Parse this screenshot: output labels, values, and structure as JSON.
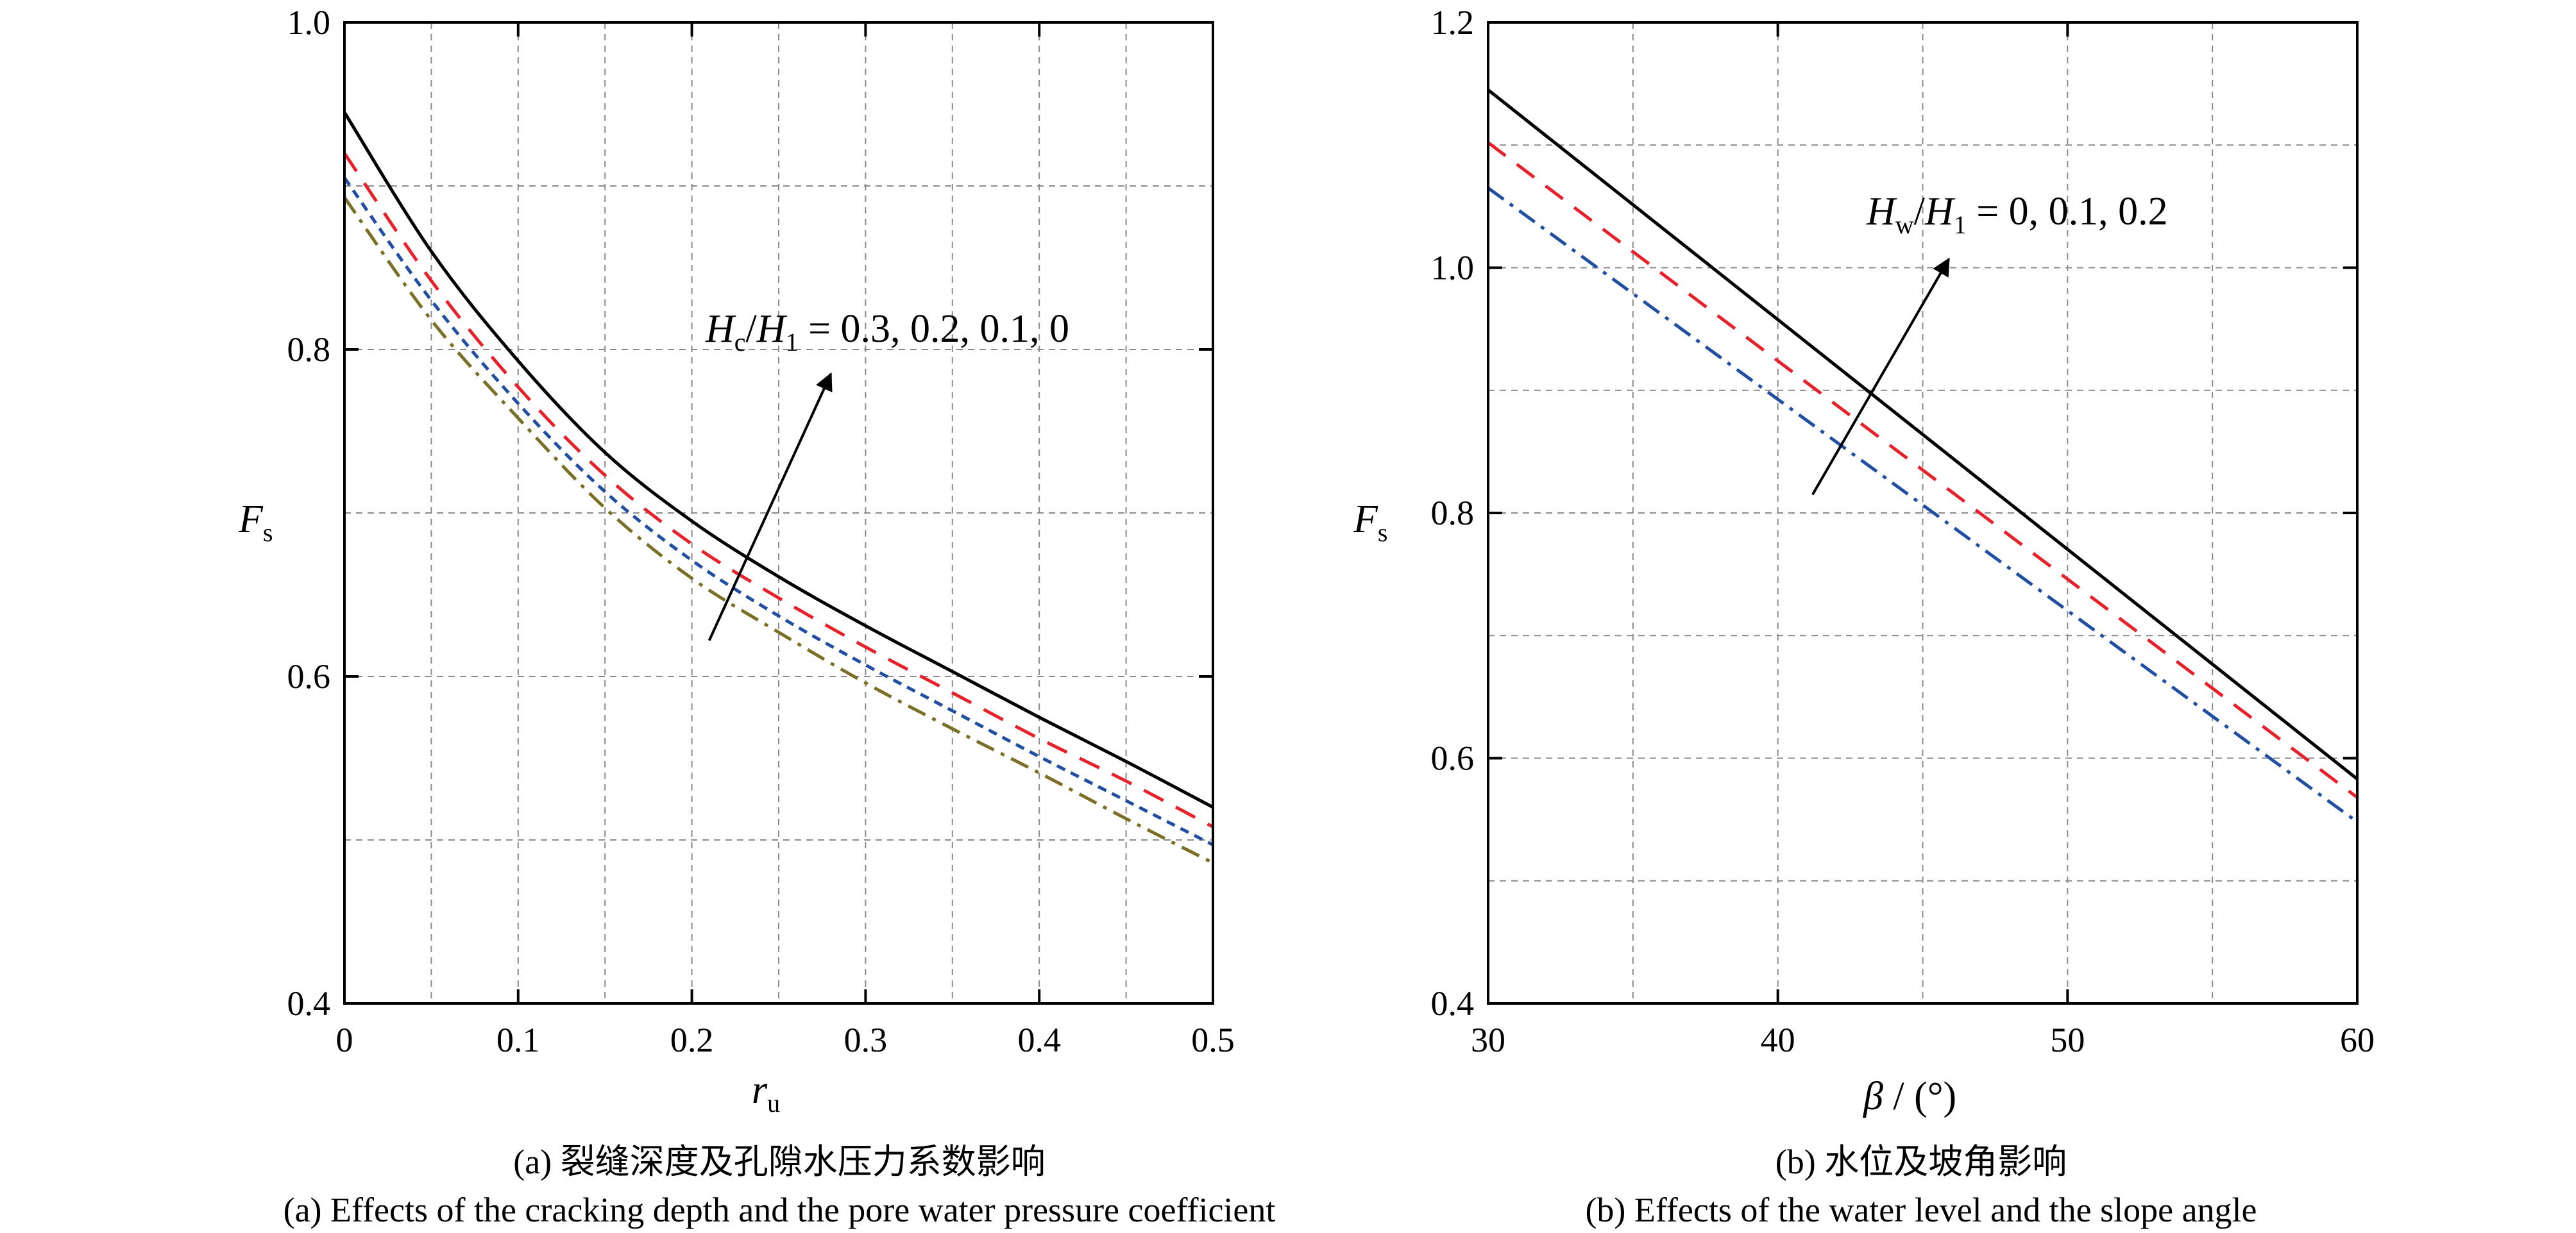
{
  "chart_data": [
    {
      "panel": "a",
      "type": "line",
      "xlabel": {
        "main": "r",
        "sub": "u"
      },
      "ylabel": {
        "main": "F",
        "sub": "s"
      },
      "xlim": [
        0,
        0.5
      ],
      "ylim": [
        0.4,
        1.0
      ],
      "xticks": [
        0,
        0.1,
        0.2,
        0.3,
        0.4,
        0.5
      ],
      "xtick_labels": [
        "0",
        "0.1",
        "0.2",
        "0.3",
        "0.4",
        "0.5"
      ],
      "yticks": [
        0.4,
        0.6,
        0.8,
        1.0
      ],
      "ytick_labels": [
        "0.4",
        "0.6",
        "0.8",
        "1.0"
      ],
      "grid": true,
      "x": [
        0,
        0.05,
        0.1,
        0.15,
        0.2,
        0.25,
        0.3,
        0.35,
        0.4,
        0.45,
        0.5
      ],
      "series": [
        {
          "values": [
            0.945,
            0.86,
            0.793,
            0.737,
            0.695,
            0.661,
            0.631,
            0.603,
            0.575,
            0.548,
            0.52
          ],
          "color": "#000000",
          "dash": "solid"
        },
        {
          "values": [
            0.92,
            0.842,
            0.777,
            0.723,
            0.681,
            0.648,
            0.618,
            0.59,
            0.562,
            0.536,
            0.508
          ],
          "color": "#e8202a",
          "dash": "long-dash"
        },
        {
          "values": [
            0.905,
            0.83,
            0.767,
            0.713,
            0.671,
            0.637,
            0.607,
            0.579,
            0.551,
            0.524,
            0.497
          ],
          "color": "#1f4ea3",
          "dash": "short-dash"
        },
        {
          "values": [
            0.893,
            0.818,
            0.758,
            0.703,
            0.66,
            0.627,
            0.596,
            0.568,
            0.541,
            0.513,
            0.486
          ],
          "color": "#7a7025",
          "dash": "dash-dot"
        }
      ],
      "annotation": {
        "H": "H",
        "sub1": "c",
        "slash": "/",
        "H2": "H",
        "sub2": "1",
        "rest": " = 0.3, 0.2, 0.1, 0"
      },
      "arrow": {
        "from": [
          0.21,
          0.622
        ],
        "to": [
          0.28,
          0.785
        ]
      },
      "caption_cn": "(a) 裂缝深度及孔隙水压力系数影响",
      "caption_en": "(a) Effects of the cracking depth and the pore water pressure coefficient"
    },
    {
      "panel": "b",
      "type": "line",
      "xlabel": {
        "main": "β",
        "rest": " / (°)"
      },
      "ylabel": {
        "main": "F",
        "sub": "s"
      },
      "xlim": [
        30,
        60
      ],
      "ylim": [
        0.4,
        1.2
      ],
      "xticks": [
        30,
        40,
        50,
        60
      ],
      "xtick_labels": [
        "30",
        "40",
        "50",
        "60"
      ],
      "yticks": [
        0.4,
        0.6,
        0.8,
        1.0,
        1.2
      ],
      "ytick_labels": [
        "0.4",
        "0.6",
        "0.8",
        "1.0",
        "1.2"
      ],
      "grid": true,
      "x": [
        30,
        60
      ],
      "series": [
        {
          "values": [
            1.145,
            0.583
          ],
          "color": "#000000",
          "dash": "solid"
        },
        {
          "values": [
            1.102,
            0.568
          ],
          "color": "#e8202a",
          "dash": "long-dash"
        },
        {
          "values": [
            1.065,
            0.548
          ],
          "color": "#1f4ea3",
          "dash": "dash-dot"
        }
      ],
      "annotation": {
        "H": "H",
        "sub1": "w",
        "slash": "/",
        "H2": "H",
        "sub2": "1",
        "rest": " =  0, 0.1, 0.2"
      },
      "arrow": {
        "from": [
          41.2,
          0.815
        ],
        "to": [
          45.9,
          1.007
        ]
      },
      "caption_cn": "(b) 水位及坡角影响",
      "caption_en": "(b) Effects of the water level and the slope angle"
    }
  ]
}
